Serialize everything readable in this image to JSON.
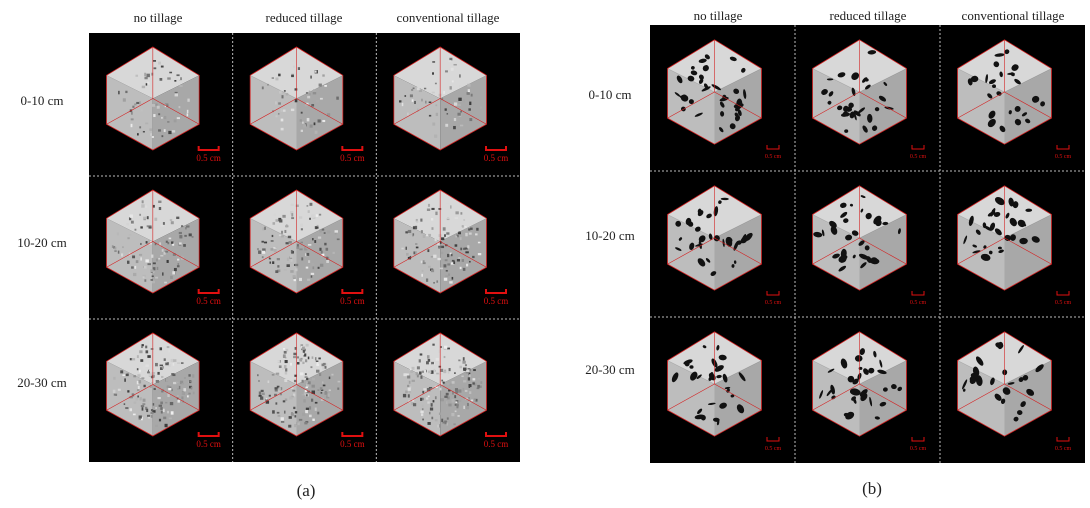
{
  "panels": [
    {
      "caption": "(a)",
      "columns": [
        "no tillage",
        "reduced tillage",
        "conventional tillage"
      ],
      "rows": [
        "0-10 cm",
        "10-20 cm",
        "20-30 cm"
      ],
      "scale_bar": "0.5 cm",
      "texture": "grayscale CT volume"
    },
    {
      "caption": "(b)",
      "columns": [
        "no tillage",
        "reduced tillage",
        "conventional tillage"
      ],
      "rows": [
        "0-10 cm",
        "10-20 cm",
        "20-30 cm"
      ],
      "scale_bar": "0.5 cm",
      "texture": "segmented pore network"
    }
  ],
  "colors": {
    "background": "#000000",
    "outline": "#d42020",
    "scale_bar": "#e01010",
    "grid": "#bbbbbb"
  }
}
